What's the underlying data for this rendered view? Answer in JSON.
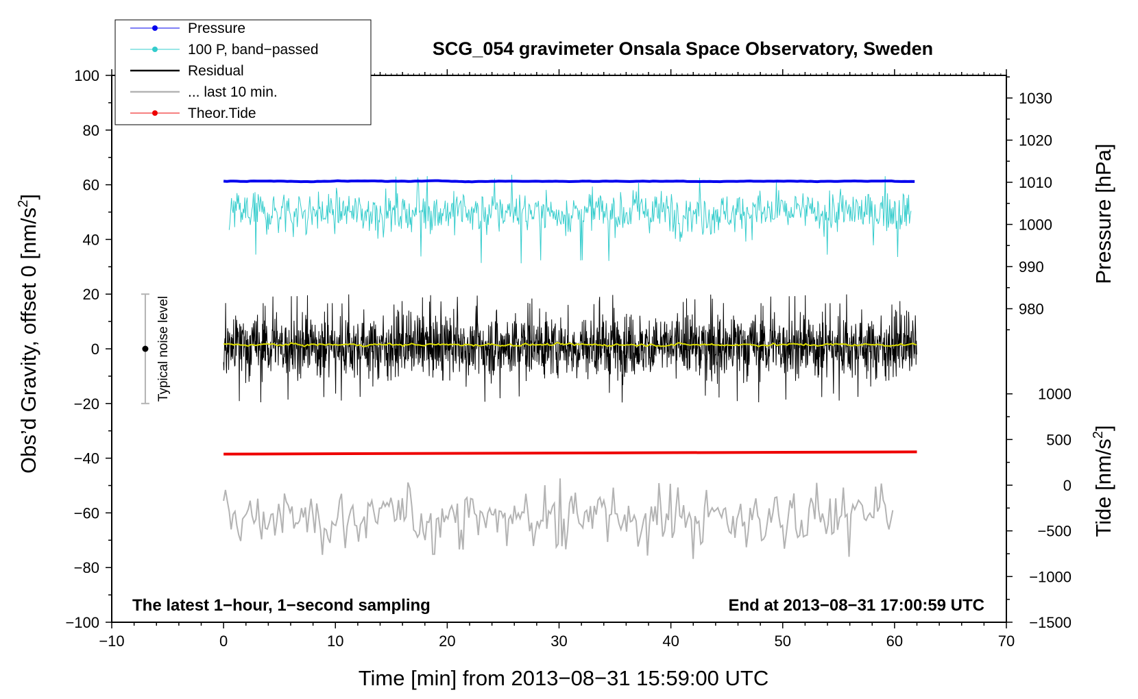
{
  "chart_data": {
    "type": "line",
    "title": "SCG_054 gravimeter Onsala Space Observatory, Sweden",
    "xlabel": "Time [min] from 2013−08−31 15:59:00 UTC",
    "ylabel_left_main": "Obs’d Gravity, offset 0 [nm/s",
    "ylabel_left_sup": "2",
    "ylabel_left_end": "]",
    "ylabel_right_pressure": "Pressure [hPa]",
    "ylabel_right_tide_main": "Tide [nm/s",
    "ylabel_right_tide_sup": "2",
    "ylabel_right_tide_end": "]",
    "xlim": [
      -10,
      70
    ],
    "ylim": [
      -100,
      100
    ],
    "pressure_axis_ticks": [
      980,
      990,
      1000,
      1010,
      1020,
      1030
    ],
    "tide_axis_ticks": [
      -1500,
      -1000,
      -500,
      0,
      500,
      1000
    ],
    "note_left": "The latest 1−hour, 1−second sampling",
    "note_right": "End at 2013−08−31 17:00:59 UTC",
    "noise_level": {
      "x": -7,
      "center": 0,
      "half_range": 20,
      "label": "Typical noise level"
    },
    "legend_position": "top-left",
    "grid": false,
    "series": [
      {
        "name": "Pressure",
        "color": "#0000ee",
        "x_range": [
          0,
          62
        ],
        "level": 61.3,
        "amplitude": 0.4
      },
      {
        "name": "100 P, band−passed",
        "color": "#33cccc",
        "x_range": [
          0.5,
          61.5
        ],
        "level": 50,
        "amplitude": 7,
        "spike_range": [
          31,
          64
        ]
      },
      {
        "name": "Residual",
        "color": "#000000",
        "x_range": [
          0,
          62
        ],
        "level": 1,
        "amplitude": 9,
        "spike_range": [
          -20,
          20
        ]
      },
      {
        "name": "... last 10 min.",
        "color": "#b3b3b3",
        "x_range": [
          0,
          60
        ],
        "level": -62,
        "amplitude": 10,
        "spike_range": [
          -77,
          -46
        ]
      },
      {
        "name": "Theor.Tide",
        "color": "#ee0000",
        "x_range": [
          0,
          62
        ],
        "start": -38.5,
        "end": -37.7
      },
      {
        "name": "",
        "color": "#dddd00",
        "x_range": [
          0,
          62
        ],
        "level": 1.5,
        "amplitude": 0.8
      }
    ]
  }
}
